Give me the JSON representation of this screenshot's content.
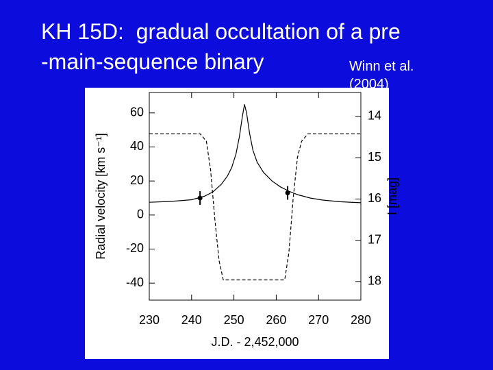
{
  "title_lines": [
    "KH 15D:  gradual occultation of a pre",
    "-main-sequence binary"
  ],
  "citation_lines": [
    "Winn et al.",
    "(2004)"
  ],
  "chart_data": {
    "type": "line",
    "xlabel": "J.D. - 2,452,000",
    "ylabel": "Radial velocity [km s⁻¹]",
    "y2label": "I [mag]",
    "xlim": [
      230,
      280
    ],
    "xticks": [
      230,
      240,
      250,
      260,
      270,
      280
    ],
    "ylim": [
      -50,
      72
    ],
    "yticks": [
      -40,
      -20,
      0,
      20,
      40,
      60
    ],
    "y2lim": [
      18.45,
      13.42
    ],
    "y2ticks": [
      14,
      15,
      16,
      17,
      18
    ],
    "series": [
      {
        "color": "#000000",
        "style": "solid",
        "x": [
          230,
          235,
          240,
          243,
          245,
          247,
          248.5,
          249.5,
          250.5,
          251.3,
          252,
          252.5,
          253,
          253.7,
          254.5,
          255.5,
          257,
          259,
          261,
          263,
          265,
          268,
          271,
          275,
          280
        ],
        "values": [
          7.5,
          8,
          9,
          11,
          13.5,
          18,
          23,
          28,
          36,
          46,
          58,
          65,
          60,
          48,
          38,
          31,
          25,
          20,
          16.5,
          14,
          12,
          10,
          8.8,
          7.8,
          7.2
        ]
      },
      {
        "color": "#000000",
        "style": "dashed",
        "axis": "y2",
        "x": [
          230,
          242,
          243.5,
          244.5,
          245.5,
          246.5,
          247.5,
          262,
          263,
          264,
          265,
          266,
          267.5,
          280
        ],
        "values": [
          14.42,
          14.42,
          14.6,
          15.3,
          16.5,
          17.5,
          17.96,
          17.96,
          17.3,
          16,
          15,
          14.6,
          14.42,
          14.42
        ]
      },
      {
        "color": "#000000",
        "style": "points",
        "x": [
          242,
          262.7
        ],
        "values": [
          10,
          13
        ],
        "errors": [
          4,
          4
        ]
      }
    ]
  }
}
